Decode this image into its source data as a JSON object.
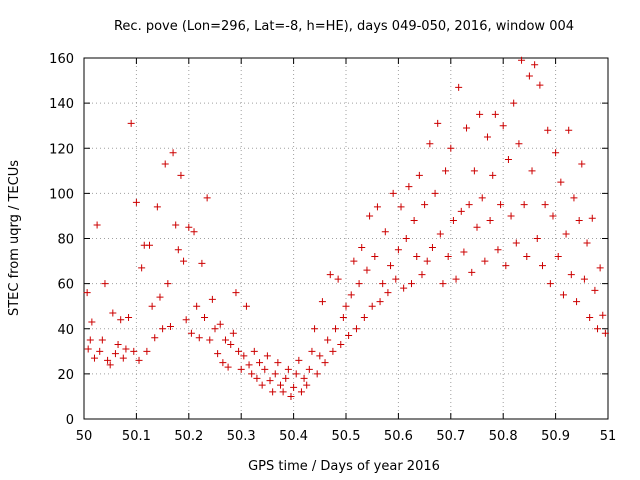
{
  "chart_data": {
    "type": "scatter",
    "title": "Rec. pove (Lon=296, Lat=-8, h=HE), days 049-050, 2016, window 004",
    "xlabel": "GPS time / Days of year 2016",
    "ylabel": "STEC from uqrg / TECUs",
    "xlim": [
      50,
      51
    ],
    "ylim": [
      0,
      160
    ],
    "x_ticks": [
      "50",
      "50.1",
      "50.2",
      "50.3",
      "50.4",
      "50.5",
      "50.6",
      "50.7",
      "50.8",
      "50.9",
      "51"
    ],
    "y_ticks": [
      "0",
      "20",
      "40",
      "60",
      "80",
      "100",
      "120",
      "140",
      "160"
    ],
    "grid": true,
    "marker": "+",
    "color": "#cc0000",
    "series": [
      {
        "name": "STEC",
        "points": [
          [
            50.006,
            56
          ],
          [
            50.008,
            31
          ],
          [
            50.012,
            35
          ],
          [
            50.015,
            43
          ],
          [
            50.02,
            27
          ],
          [
            50.025,
            86
          ],
          [
            50.03,
            30
          ],
          [
            50.035,
            35
          ],
          [
            50.04,
            60
          ],
          [
            50.045,
            26
          ],
          [
            50.05,
            24
          ],
          [
            50.055,
            47
          ],
          [
            50.06,
            29
          ],
          [
            50.065,
            33
          ],
          [
            50.07,
            44
          ],
          [
            50.075,
            27
          ],
          [
            50.08,
            31
          ],
          [
            50.085,
            45
          ],
          [
            50.09,
            131
          ],
          [
            50.095,
            30
          ],
          [
            50.1,
            96
          ],
          [
            50.105,
            26
          ],
          [
            50.11,
            67
          ],
          [
            50.115,
            77
          ],
          [
            50.12,
            30
          ],
          [
            50.125,
            77
          ],
          [
            50.13,
            50
          ],
          [
            50.135,
            36
          ],
          [
            50.14,
            94
          ],
          [
            50.145,
            54
          ],
          [
            50.15,
            40
          ],
          [
            50.155,
            113
          ],
          [
            50.16,
            60
          ],
          [
            50.165,
            41
          ],
          [
            50.17,
            118
          ],
          [
            50.175,
            86
          ],
          [
            50.18,
            75
          ],
          [
            50.185,
            108
          ],
          [
            50.19,
            70
          ],
          [
            50.195,
            44
          ],
          [
            50.2,
            85
          ],
          [
            50.205,
            38
          ],
          [
            50.21,
            83
          ],
          [
            50.215,
            50
          ],
          [
            50.22,
            36
          ],
          [
            50.225,
            69
          ],
          [
            50.23,
            45
          ],
          [
            50.235,
            98
          ],
          [
            50.24,
            35
          ],
          [
            50.245,
            53
          ],
          [
            50.25,
            40
          ],
          [
            50.255,
            29
          ],
          [
            50.26,
            42
          ],
          [
            50.265,
            25
          ],
          [
            50.27,
            35
          ],
          [
            50.275,
            23
          ],
          [
            50.28,
            33
          ],
          [
            50.285,
            38
          ],
          [
            50.29,
            56
          ],
          [
            50.295,
            30
          ],
          [
            50.3,
            22
          ],
          [
            50.305,
            28
          ],
          [
            50.31,
            50
          ],
          [
            50.315,
            24
          ],
          [
            50.32,
            20
          ],
          [
            50.325,
            30
          ],
          [
            50.33,
            18
          ],
          [
            50.335,
            25
          ],
          [
            50.34,
            15
          ],
          [
            50.345,
            22
          ],
          [
            50.35,
            28
          ],
          [
            50.355,
            17
          ],
          [
            50.36,
            12
          ],
          [
            50.365,
            20
          ],
          [
            50.37,
            25
          ],
          [
            50.375,
            15
          ],
          [
            50.38,
            12
          ],
          [
            50.385,
            18
          ],
          [
            50.39,
            22
          ],
          [
            50.395,
            10
          ],
          [
            50.4,
            14
          ],
          [
            50.405,
            20
          ],
          [
            50.41,
            26
          ],
          [
            50.415,
            12
          ],
          [
            50.42,
            18
          ],
          [
            50.425,
            15
          ],
          [
            50.43,
            22
          ],
          [
            50.435,
            30
          ],
          [
            50.44,
            40
          ],
          [
            50.445,
            20
          ],
          [
            50.45,
            28
          ],
          [
            50.455,
            52
          ],
          [
            50.46,
            25
          ],
          [
            50.465,
            35
          ],
          [
            50.47,
            64
          ],
          [
            50.475,
            30
          ],
          [
            50.48,
            40
          ],
          [
            50.485,
            62
          ],
          [
            50.49,
            33
          ],
          [
            50.495,
            45
          ],
          [
            50.5,
            50
          ],
          [
            50.505,
            37
          ],
          [
            50.51,
            55
          ],
          [
            50.515,
            70
          ],
          [
            50.52,
            40
          ],
          [
            50.525,
            60
          ],
          [
            50.53,
            76
          ],
          [
            50.535,
            45
          ],
          [
            50.54,
            66
          ],
          [
            50.545,
            90
          ],
          [
            50.55,
            50
          ],
          [
            50.555,
            72
          ],
          [
            50.56,
            94
          ],
          [
            50.565,
            52
          ],
          [
            50.57,
            60
          ],
          [
            50.575,
            83
          ],
          [
            50.58,
            56
          ],
          [
            50.585,
            68
          ],
          [
            50.59,
            100
          ],
          [
            50.595,
            62
          ],
          [
            50.6,
            75
          ],
          [
            50.605,
            94
          ],
          [
            50.61,
            58
          ],
          [
            50.615,
            80
          ],
          [
            50.62,
            103
          ],
          [
            50.625,
            60
          ],
          [
            50.63,
            88
          ],
          [
            50.635,
            72
          ],
          [
            50.64,
            108
          ],
          [
            50.645,
            64
          ],
          [
            50.65,
            95
          ],
          [
            50.655,
            70
          ],
          [
            50.66,
            122
          ],
          [
            50.665,
            76
          ],
          [
            50.67,
            100
          ],
          [
            50.675,
            131
          ],
          [
            50.68,
            82
          ],
          [
            50.685,
            60
          ],
          [
            50.69,
            110
          ],
          [
            50.695,
            72
          ],
          [
            50.7,
            120
          ],
          [
            50.705,
            88
          ],
          [
            50.71,
            62
          ],
          [
            50.715,
            147
          ],
          [
            50.72,
            92
          ],
          [
            50.725,
            74
          ],
          [
            50.73,
            129
          ],
          [
            50.735,
            95
          ],
          [
            50.74,
            65
          ],
          [
            50.745,
            110
          ],
          [
            50.75,
            85
          ],
          [
            50.755,
            135
          ],
          [
            50.76,
            98
          ],
          [
            50.765,
            70
          ],
          [
            50.77,
            125
          ],
          [
            50.775,
            88
          ],
          [
            50.78,
            108
          ],
          [
            50.785,
            135
          ],
          [
            50.79,
            75
          ],
          [
            50.795,
            95
          ],
          [
            50.8,
            130
          ],
          [
            50.805,
            68
          ],
          [
            50.81,
            115
          ],
          [
            50.815,
            90
          ],
          [
            50.82,
            140
          ],
          [
            50.825,
            78
          ],
          [
            50.83,
            122
          ],
          [
            50.835,
            159
          ],
          [
            50.84,
            95
          ],
          [
            50.845,
            72
          ],
          [
            50.85,
            152
          ],
          [
            50.855,
            110
          ],
          [
            50.86,
            157
          ],
          [
            50.865,
            80
          ],
          [
            50.87,
            148
          ],
          [
            50.875,
            68
          ],
          [
            50.88,
            95
          ],
          [
            50.885,
            128
          ],
          [
            50.89,
            60
          ],
          [
            50.895,
            90
          ],
          [
            50.9,
            118
          ],
          [
            50.905,
            72
          ],
          [
            50.91,
            105
          ],
          [
            50.915,
            55
          ],
          [
            50.92,
            82
          ],
          [
            50.925,
            128
          ],
          [
            50.93,
            64
          ],
          [
            50.935,
            98
          ],
          [
            50.94,
            52
          ],
          [
            50.945,
            88
          ],
          [
            50.95,
            113
          ],
          [
            50.955,
            62
          ],
          [
            50.96,
            78
          ],
          [
            50.965,
            45
          ],
          [
            50.97,
            89
          ],
          [
            50.975,
            57
          ],
          [
            50.98,
            40
          ],
          [
            50.985,
            67
          ],
          [
            50.99,
            46
          ],
          [
            50.995,
            38
          ]
        ]
      }
    ]
  }
}
